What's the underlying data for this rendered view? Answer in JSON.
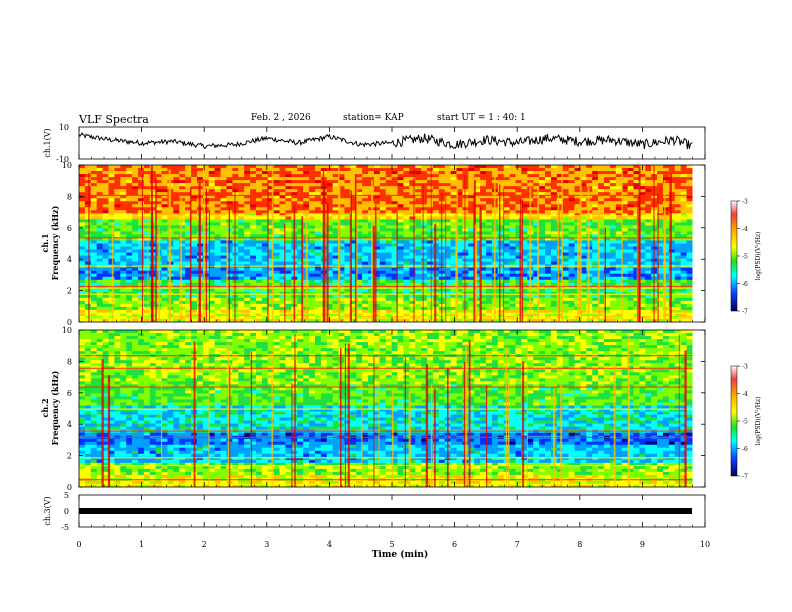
{
  "header": {
    "title": "VLF Spectra",
    "date": "Feb. 2 , 2026",
    "station": "station= KAP",
    "start": "start UT =  1 : 40: 1"
  },
  "colorbar": {
    "label": "log(PSD)(V²/Hz)",
    "ticks": [
      "-3",
      "-4",
      "-5",
      "-6",
      "-7"
    ],
    "colors": [
      "#e8001a",
      "#ffb000",
      "#ffff00",
      "#20e020",
      "#00ffff",
      "#1040ff",
      "#000060"
    ]
  },
  "chart_data": [
    {
      "type": "line",
      "title": "ch.1(V)",
      "ylabel": "ch.1(V)",
      "ylim": [
        -10,
        10
      ],
      "yticks": [
        "10",
        "-10"
      ],
      "x": [
        0,
        0.5,
        1.0,
        1.5,
        2.0,
        2.5,
        3.0,
        3.5,
        4.0,
        4.5,
        5.0,
        5.5,
        6.0,
        6.5,
        7.0,
        7.5,
        8.0,
        8.5,
        9.0,
        9.5,
        9.8
      ],
      "values": [
        5,
        2,
        0,
        1,
        -2,
        -1,
        3,
        0,
        4,
        -1,
        0,
        3,
        -1,
        2,
        0,
        3,
        1,
        2,
        -1,
        2,
        -2
      ],
      "color": "#000000"
    },
    {
      "type": "heatmap",
      "ylabel": "ch.1\nFrequency (kHz)",
      "ylim": [
        0,
        10
      ],
      "yticks": [
        "0",
        "2",
        "4",
        "6",
        "8",
        "10"
      ],
      "xlim": [
        0,
        10
      ],
      "colorbar_range": [
        -7,
        -3
      ]
    },
    {
      "type": "heatmap",
      "ylabel": "ch.2\nFrequency (kHz)",
      "ylim": [
        0,
        10
      ],
      "yticks": [
        "0",
        "2",
        "4",
        "6",
        "8",
        "10"
      ],
      "xlim": [
        0,
        10
      ],
      "colorbar_range": [
        -7,
        -3
      ]
    },
    {
      "type": "line",
      "ylabel": "ch.3(V)",
      "ylim": [
        -5,
        5
      ],
      "yticks": [
        "5",
        "0",
        "-5"
      ],
      "x": [
        0,
        9.8
      ],
      "values": [
        0,
        0
      ],
      "color": "#000000"
    }
  ],
  "xaxis": {
    "label": "Time (min)",
    "ticks": [
      "0",
      "1",
      "2",
      "3",
      "4",
      "5",
      "6",
      "7",
      "8",
      "9",
      "10"
    ],
    "xlim": [
      0,
      10
    ],
    "data_end": 9.8
  }
}
